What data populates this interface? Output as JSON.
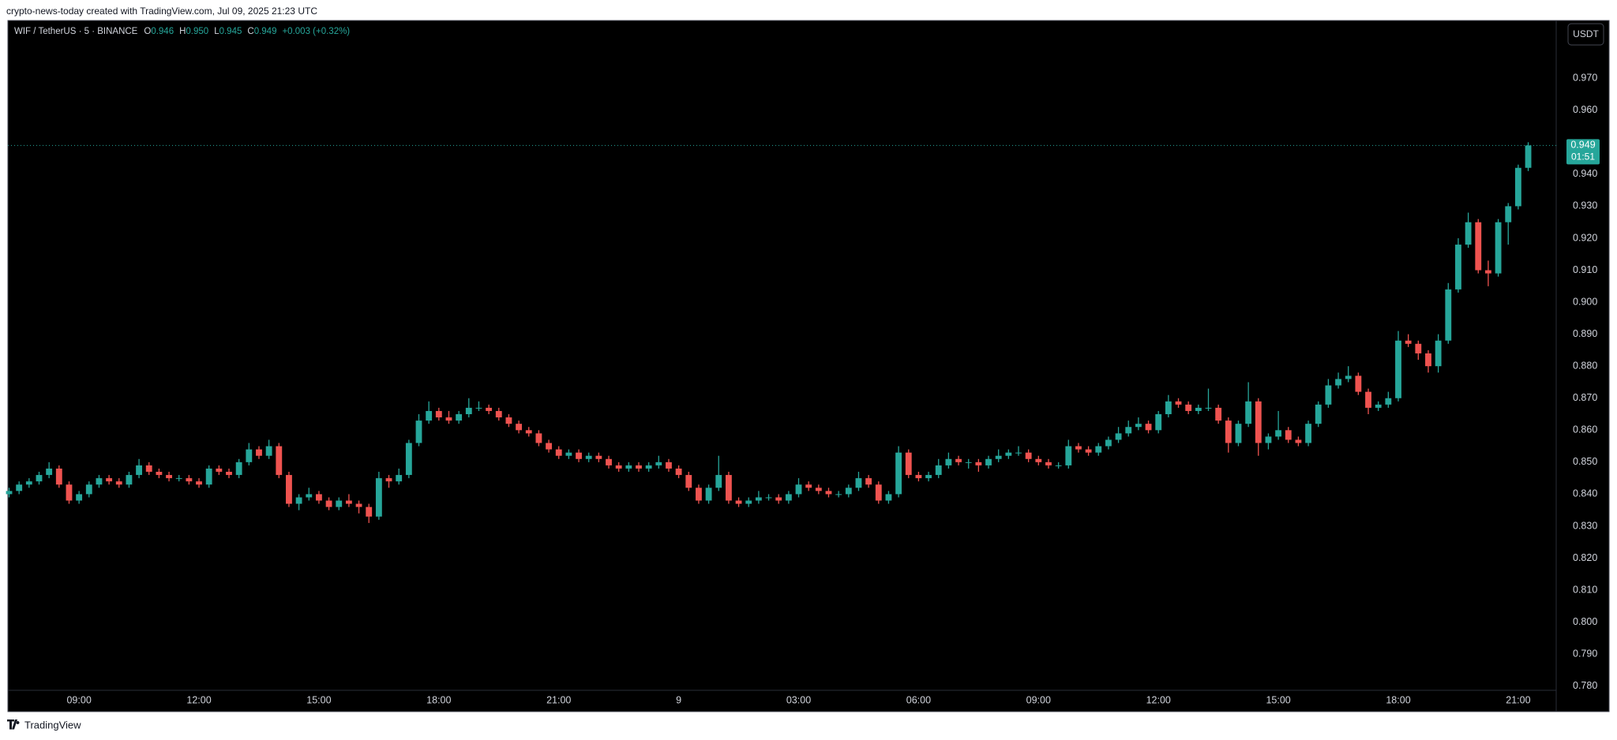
{
  "chart_data": {
    "type": "candlestick",
    "caption": "crypto-news-today created with TradingView.com, Jul 09, 2025 21:23 UTC",
    "symbol": "WIF / TetherUS · 5 · BINANCE",
    "legend_ohlc": [
      {
        "label": "O",
        "value": "0.946"
      },
      {
        "label": "H",
        "value": "0.950"
      },
      {
        "label": "L",
        "value": "0.945"
      },
      {
        "label": "C",
        "value": "0.949"
      }
    ],
    "change": "+0.003 (+0.32%)",
    "currency": "USDT",
    "last_price": {
      "value": 0.949,
      "label": "0.949"
    },
    "countdown": "01:51",
    "footer": "TradingView",
    "up_color": "#26a69a",
    "down_color": "#ef5350",
    "grid": false,
    "xlim": [
      7.22,
      45.95
    ],
    "xticks": [
      {
        "value": 9,
        "label": "09:00"
      },
      {
        "value": 12,
        "label": "12:00"
      },
      {
        "value": 15,
        "label": "15:00"
      },
      {
        "value": 18,
        "label": "18:00"
      },
      {
        "value": 21,
        "label": "21:00"
      },
      {
        "value": 24,
        "label": "9"
      },
      {
        "value": 27,
        "label": "03:00"
      },
      {
        "value": 30,
        "label": "06:00"
      },
      {
        "value": 33,
        "label": "09:00"
      },
      {
        "value": 36,
        "label": "12:00"
      },
      {
        "value": 39,
        "label": "15:00"
      },
      {
        "value": 42,
        "label": "18:00"
      },
      {
        "value": 45,
        "label": "21:00"
      }
    ],
    "ylim": [
      0.7787,
      0.9878
    ],
    "yticks": [
      {
        "value": 0.78,
        "label": "0.780"
      },
      {
        "value": 0.79,
        "label": "0.790"
      },
      {
        "value": 0.8,
        "label": "0.800"
      },
      {
        "value": 0.81,
        "label": "0.810"
      },
      {
        "value": 0.82,
        "label": "0.820"
      },
      {
        "value": 0.83,
        "label": "0.830"
      },
      {
        "value": 0.84,
        "label": "0.840"
      },
      {
        "value": 0.85,
        "label": "0.850"
      },
      {
        "value": 0.86,
        "label": "0.860"
      },
      {
        "value": 0.87,
        "label": "0.870"
      },
      {
        "value": 0.88,
        "label": "0.880"
      },
      {
        "value": 0.89,
        "label": "0.890"
      },
      {
        "value": 0.9,
        "label": "0.900"
      },
      {
        "value": 0.91,
        "label": "0.910"
      },
      {
        "value": 0.92,
        "label": "0.920"
      },
      {
        "value": 0.93,
        "label": "0.930"
      },
      {
        "value": 0.94,
        "label": "0.940"
      },
      {
        "value": 0.96,
        "label": "0.960"
      },
      {
        "value": 0.97,
        "label": "0.970"
      }
    ],
    "x": [
      7.25,
      7.5,
      7.75,
      8,
      8.25,
      8.5,
      8.75,
      9,
      9.25,
      9.5,
      9.75,
      10,
      10.25,
      10.5,
      10.75,
      11,
      11.25,
      11.5,
      11.75,
      12,
      12.25,
      12.5,
      12.75,
      13,
      13.25,
      13.5,
      13.75,
      14,
      14.25,
      14.5,
      14.75,
      15,
      15.25,
      15.5,
      15.75,
      16,
      16.25,
      16.5,
      16.75,
      17,
      17.25,
      17.5,
      17.75,
      18,
      18.25,
      18.5,
      18.75,
      19,
      19.25,
      19.5,
      19.75,
      20,
      20.25,
      20.5,
      20.75,
      21,
      21.25,
      21.5,
      21.75,
      22,
      22.25,
      22.5,
      22.75,
      23,
      23.25,
      23.5,
      23.75,
      24,
      24.25,
      24.5,
      24.75,
      25,
      25.25,
      25.5,
      25.75,
      26,
      26.25,
      26.5,
      26.75,
      27,
      27.25,
      27.5,
      27.75,
      28,
      28.25,
      28.5,
      28.75,
      29,
      29.25,
      29.5,
      29.75,
      30,
      30.25,
      30.5,
      30.75,
      31,
      31.25,
      31.5,
      31.75,
      32,
      32.25,
      32.5,
      32.75,
      33,
      33.25,
      33.5,
      33.75,
      34,
      34.25,
      34.5,
      34.75,
      35,
      35.25,
      35.5,
      35.75,
      36,
      36.25,
      36.5,
      36.75,
      37,
      37.25,
      37.5,
      37.75,
      38,
      38.25,
      38.5,
      38.75,
      39,
      39.25,
      39.5,
      39.75,
      40,
      40.25,
      40.5,
      40.75,
      41,
      41.25,
      41.5,
      41.75,
      42,
      42.25,
      42.5,
      42.75,
      43,
      43.25,
      43.5,
      43.75,
      44,
      44.25,
      44.5,
      44.75,
      45,
      45.25
    ],
    "open": [
      0.84,
      0.841,
      0.843,
      0.844,
      0.846,
      0.848,
      0.843,
      0.838,
      0.84,
      0.843,
      0.845,
      0.844,
      0.843,
      0.846,
      0.849,
      0.847,
      0.846,
      0.845,
      0.845,
      0.844,
      0.843,
      0.848,
      0.847,
      0.846,
      0.85,
      0.854,
      0.852,
      0.855,
      0.846,
      0.837,
      0.839,
      0.84,
      0.838,
      0.836,
      0.838,
      0.837,
      0.836,
      0.833,
      0.845,
      0.844,
      0.846,
      0.856,
      0.863,
      0.866,
      0.864,
      0.863,
      0.865,
      0.867,
      0.867,
      0.866,
      0.864,
      0.862,
      0.86,
      0.859,
      0.856,
      0.854,
      0.852,
      0.853,
      0.851,
      0.852,
      0.851,
      0.849,
      0.848,
      0.849,
      0.848,
      0.849,
      0.85,
      0.848,
      0.846,
      0.842,
      0.838,
      0.842,
      0.846,
      0.838,
      0.837,
      0.838,
      0.839,
      0.839,
      0.838,
      0.84,
      0.843,
      0.842,
      0.841,
      0.84,
      0.84,
      0.842,
      0.845,
      0.843,
      0.838,
      0.84,
      0.853,
      0.846,
      0.845,
      0.846,
      0.849,
      0.851,
      0.85,
      0.85,
      0.849,
      0.851,
      0.852,
      0.853,
      0.853,
      0.851,
      0.85,
      0.849,
      0.849,
      0.855,
      0.854,
      0.853,
      0.855,
      0.857,
      0.859,
      0.861,
      0.862,
      0.86,
      0.865,
      0.869,
      0.868,
      0.866,
      0.867,
      0.867,
      0.863,
      0.856,
      0.862,
      0.869,
      0.856,
      0.858,
      0.86,
      0.857,
      0.856,
      0.862,
      0.868,
      0.874,
      0.876,
      0.877,
      0.872,
      0.867,
      0.868,
      0.87,
      0.888,
      0.887,
      0.884,
      0.88,
      0.888,
      0.904,
      0.918,
      0.925,
      0.91,
      0.909,
      0.925,
      0.93,
      0.942
    ],
    "high": [
      0.842,
      0.844,
      0.845,
      0.847,
      0.85,
      0.849,
      0.844,
      0.841,
      0.844,
      0.846,
      0.846,
      0.845,
      0.847,
      0.851,
      0.85,
      0.848,
      0.847,
      0.846,
      0.846,
      0.845,
      0.849,
      0.849,
      0.848,
      0.851,
      0.856,
      0.855,
      0.857,
      0.856,
      0.847,
      0.84,
      0.842,
      0.841,
      0.839,
      0.839,
      0.84,
      0.838,
      0.837,
      0.847,
      0.846,
      0.848,
      0.857,
      0.865,
      0.869,
      0.867,
      0.866,
      0.866,
      0.87,
      0.869,
      0.868,
      0.867,
      0.865,
      0.863,
      0.861,
      0.86,
      0.857,
      0.855,
      0.854,
      0.854,
      0.853,
      0.853,
      0.852,
      0.85,
      0.85,
      0.85,
      0.85,
      0.852,
      0.851,
      0.849,
      0.847,
      0.843,
      0.843,
      0.852,
      0.847,
      0.839,
      0.839,
      0.841,
      0.84,
      0.84,
      0.841,
      0.845,
      0.844,
      0.843,
      0.842,
      0.841,
      0.843,
      0.847,
      0.846,
      0.844,
      0.841,
      0.855,
      0.854,
      0.847,
      0.847,
      0.851,
      0.853,
      0.852,
      0.851,
      0.851,
      0.852,
      0.854,
      0.854,
      0.855,
      0.854,
      0.852,
      0.851,
      0.85,
      0.857,
      0.856,
      0.855,
      0.856,
      0.858,
      0.861,
      0.863,
      0.864,
      0.863,
      0.866,
      0.871,
      0.87,
      0.869,
      0.868,
      0.873,
      0.868,
      0.864,
      0.863,
      0.875,
      0.87,
      0.859,
      0.866,
      0.861,
      0.858,
      0.863,
      0.869,
      0.876,
      0.878,
      0.88,
      0.878,
      0.873,
      0.869,
      0.872,
      0.891,
      0.89,
      0.888,
      0.885,
      0.89,
      0.906,
      0.92,
      0.928,
      0.926,
      0.913,
      0.926,
      0.931,
      0.943,
      0.95
    ],
    "low": [
      0.839,
      0.84,
      0.842,
      0.843,
      0.845,
      0.842,
      0.837,
      0.837,
      0.839,
      0.842,
      0.843,
      0.842,
      0.842,
      0.845,
      0.846,
      0.845,
      0.844,
      0.844,
      0.843,
      0.842,
      0.842,
      0.846,
      0.845,
      0.845,
      0.849,
      0.851,
      0.851,
      0.845,
      0.836,
      0.835,
      0.838,
      0.837,
      0.835,
      0.835,
      0.836,
      0.834,
      0.831,
      0.832,
      0.842,
      0.843,
      0.845,
      0.855,
      0.862,
      0.863,
      0.862,
      0.862,
      0.864,
      0.866,
      0.865,
      0.863,
      0.861,
      0.859,
      0.858,
      0.855,
      0.853,
      0.851,
      0.851,
      0.85,
      0.85,
      0.85,
      0.848,
      0.847,
      0.847,
      0.847,
      0.847,
      0.848,
      0.847,
      0.845,
      0.841,
      0.837,
      0.837,
      0.841,
      0.837,
      0.836,
      0.836,
      0.837,
      0.838,
      0.837,
      0.837,
      0.839,
      0.841,
      0.84,
      0.839,
      0.839,
      0.839,
      0.841,
      0.842,
      0.837,
      0.837,
      0.839,
      0.845,
      0.844,
      0.844,
      0.845,
      0.848,
      0.849,
      0.848,
      0.847,
      0.848,
      0.85,
      0.851,
      0.852,
      0.85,
      0.849,
      0.848,
      0.848,
      0.848,
      0.853,
      0.852,
      0.852,
      0.854,
      0.856,
      0.858,
      0.86,
      0.859,
      0.859,
      0.864,
      0.867,
      0.865,
      0.865,
      0.866,
      0.862,
      0.853,
      0.855,
      0.861,
      0.852,
      0.854,
      0.857,
      0.856,
      0.855,
      0.855,
      0.861,
      0.867,
      0.873,
      0.875,
      0.871,
      0.865,
      0.866,
      0.867,
      0.869,
      0.886,
      0.882,
      0.878,
      0.878,
      0.887,
      0.903,
      0.917,
      0.909,
      0.905,
      0.908,
      0.918,
      0.929,
      0.941
    ],
    "close": [
      0.841,
      0.843,
      0.844,
      0.846,
      0.848,
      0.843,
      0.838,
      0.84,
      0.843,
      0.845,
      0.844,
      0.843,
      0.846,
      0.849,
      0.847,
      0.846,
      0.845,
      0.845,
      0.844,
      0.843,
      0.848,
      0.847,
      0.846,
      0.85,
      0.854,
      0.852,
      0.855,
      0.846,
      0.837,
      0.839,
      0.84,
      0.838,
      0.836,
      0.838,
      0.837,
      0.836,
      0.833,
      0.845,
      0.844,
      0.846,
      0.856,
      0.863,
      0.866,
      0.864,
      0.863,
      0.865,
      0.867,
      0.867,
      0.866,
      0.864,
      0.862,
      0.86,
      0.859,
      0.856,
      0.854,
      0.852,
      0.853,
      0.851,
      0.852,
      0.851,
      0.849,
      0.848,
      0.849,
      0.848,
      0.849,
      0.85,
      0.848,
      0.846,
      0.842,
      0.838,
      0.842,
      0.846,
      0.838,
      0.837,
      0.838,
      0.839,
      0.839,
      0.838,
      0.84,
      0.843,
      0.842,
      0.841,
      0.84,
      0.84,
      0.842,
      0.845,
      0.843,
      0.838,
      0.84,
      0.853,
      0.846,
      0.845,
      0.846,
      0.849,
      0.851,
      0.85,
      0.85,
      0.849,
      0.851,
      0.852,
      0.853,
      0.853,
      0.851,
      0.85,
      0.849,
      0.849,
      0.855,
      0.854,
      0.853,
      0.855,
      0.857,
      0.859,
      0.861,
      0.862,
      0.86,
      0.865,
      0.869,
      0.868,
      0.866,
      0.867,
      0.867,
      0.863,
      0.856,
      0.862,
      0.869,
      0.856,
      0.858,
      0.86,
      0.857,
      0.856,
      0.862,
      0.868,
      0.874,
      0.876,
      0.877,
      0.872,
      0.867,
      0.868,
      0.87,
      0.888,
      0.887,
      0.884,
      0.88,
      0.888,
      0.904,
      0.918,
      0.925,
      0.91,
      0.909,
      0.925,
      0.93,
      0.942,
      0.949
    ]
  }
}
